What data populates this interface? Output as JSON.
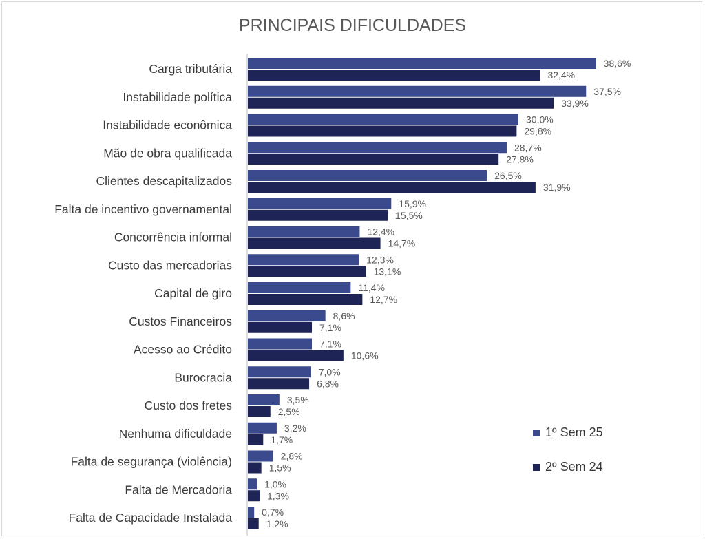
{
  "chart_data": {
    "type": "bar",
    "orientation": "horizontal",
    "title": "PRINCIPAIS DIFICULDADES",
    "xlabel": "",
    "ylabel": "",
    "xlim": [
      0,
      40
    ],
    "grid": false,
    "legend_position": "bottom-right",
    "categories": [
      "Carga tributária",
      "Instabilidade política",
      "Instabilidade econômica",
      "Mão de obra qualificada",
      "Clientes descapitalizados",
      "Falta de incentivo governamental",
      "Concorrência informal",
      "Custo das mercadorias",
      "Capital de giro",
      "Custos Financeiros",
      "Acesso ao Crédito",
      "Burocracia",
      "Custo dos fretes",
      "Nenhuma dificuldade",
      "Falta de segurança (violência)",
      "Falta de Mercadoria",
      "Falta de Capacidade Instalada"
    ],
    "series": [
      {
        "name": "1º Sem 25",
        "color": "#3a4a8c",
        "values": [
          38.6,
          37.5,
          30.0,
          28.7,
          26.5,
          15.9,
          12.4,
          12.3,
          11.4,
          8.6,
          7.1,
          7.0,
          3.5,
          3.2,
          2.8,
          1.0,
          0.7
        ],
        "labels": [
          "38,6%",
          "37,5%",
          "30,0%",
          "28,7%",
          "26,5%",
          "15,9%",
          "12,4%",
          "12,3%",
          "11,4%",
          "8,6%",
          "7,1%",
          "7,0%",
          "3,5%",
          "3,2%",
          "2,8%",
          "1,0%",
          "0,7%"
        ]
      },
      {
        "name": "2º Sem 24",
        "color": "#1f2456",
        "values": [
          32.4,
          33.9,
          29.8,
          27.8,
          31.9,
          15.5,
          14.7,
          13.1,
          12.7,
          7.1,
          10.6,
          6.8,
          2.5,
          1.7,
          1.5,
          1.3,
          1.2
        ],
        "labels": [
          "32,4%",
          "33,9%",
          "29,8%",
          "27,8%",
          "31,9%",
          "15,5%",
          "14,7%",
          "13,1%",
          "12,7%",
          "7,1%",
          "10,6%",
          "6,8%",
          "2,5%",
          "1,7%",
          "1,5%",
          "1,3%",
          "1,2%"
        ]
      }
    ],
    "axis_color": "#bfbfbf"
  }
}
